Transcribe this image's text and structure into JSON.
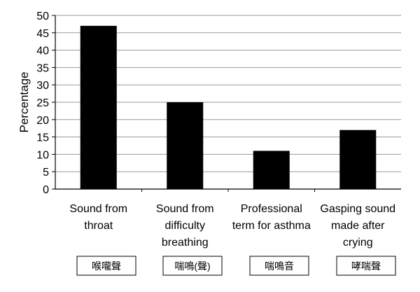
{
  "chart_data": {
    "type": "bar",
    "title": "",
    "xlabel": "",
    "ylabel": "Percentage",
    "ylim": [
      0,
      50
    ],
    "y_ticks": [
      0,
      5,
      10,
      15,
      20,
      25,
      30,
      35,
      40,
      45,
      50
    ],
    "grid": true,
    "categories": [
      [
        "Sound from",
        "throat"
      ],
      [
        "Sound from",
        "difficulty",
        "breathing"
      ],
      [
        "Professional",
        "term for asthma"
      ],
      [
        "Gasping sound",
        "made after",
        "crying"
      ]
    ],
    "values": [
      47,
      25,
      11,
      17
    ],
    "category_annotations": [
      "喉嚨聲",
      "喘鳴(聲)",
      "喘鳴音",
      "哮喘聲"
    ],
    "bar_color": "#000000",
    "grid_color": "#9a9a9a"
  }
}
